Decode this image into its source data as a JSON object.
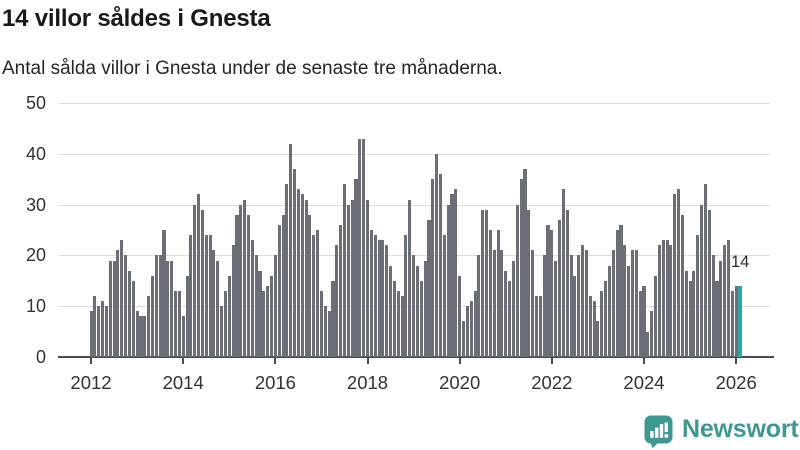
{
  "header": {
    "title": "14 villor såldes i Gnesta",
    "subtitle": "Antal sålda villor i Gnesta under de senaste tre månaderna."
  },
  "chart_data": {
    "type": "bar",
    "title": "14 villor såldes i Gnesta",
    "subtitle": "Antal sålda villor i Gnesta under de senaste tre månaderna.",
    "xlabel": "",
    "ylabel": "",
    "ylim": [
      0,
      50
    ],
    "y_ticks": [
      0,
      10,
      20,
      30,
      40,
      50
    ],
    "grid": true,
    "x_tick_labels": [
      "2012",
      "2014",
      "2016",
      "2018",
      "2020",
      "2022",
      "2024",
      "2026"
    ],
    "x_tick_indices": [
      0,
      24,
      48,
      72,
      96,
      120,
      144,
      168
    ],
    "x_unit": "month",
    "values": [
      9,
      12,
      10,
      11,
      10,
      19,
      19,
      21,
      23,
      20,
      17,
      15,
      9,
      8,
      8,
      12,
      16,
      20,
      20,
      25,
      19,
      19,
      13,
      13,
      8,
      16,
      24,
      30,
      32,
      29,
      24,
      24,
      21,
      19,
      10,
      13,
      16,
      22,
      28,
      30,
      31,
      28,
      23,
      20,
      17,
      13,
      14,
      16,
      20,
      26,
      28,
      34,
      42,
      37,
      33,
      32,
      31,
      28,
      24,
      25,
      13,
      10,
      9,
      15,
      22,
      26,
      34,
      30,
      31,
      35,
      43,
      43,
      31,
      25,
      24,
      23,
      23,
      22,
      18,
      15,
      13,
      12,
      24,
      31,
      20,
      18,
      15,
      19,
      27,
      35,
      40,
      36,
      24,
      30,
      32,
      33,
      16,
      7,
      10,
      11,
      13,
      20,
      29,
      29,
      25,
      21,
      25,
      21,
      17,
      15,
      19,
      30,
      35,
      37,
      29,
      21,
      12,
      12,
      20,
      26,
      25,
      19,
      27,
      33,
      29,
      20,
      16,
      20,
      22,
      21,
      12,
      11,
      7,
      13,
      15,
      18,
      21,
      25,
      26,
      22,
      18,
      21,
      21,
      13,
      14,
      5,
      9,
      16,
      22,
      23,
      23,
      22,
      32,
      33,
      28,
      17,
      15,
      17,
      24,
      30,
      34,
      29,
      20,
      15,
      19,
      22,
      23,
      13,
      14,
      14
    ],
    "highlight_index": 169,
    "bar_color": "#6b6e75",
    "highlight_color": "#2aa7a0",
    "legend": null
  },
  "annotation": {
    "label": "14"
  },
  "footer": {
    "brand": "Newsworthy",
    "brand_color": "#3d998f"
  },
  "colors": {
    "grid": "#dbdbdb",
    "axis": "#4c4c4c",
    "tick_text": "#333333",
    "title_text": "#191919",
    "subtitle_text": "#262626"
  }
}
